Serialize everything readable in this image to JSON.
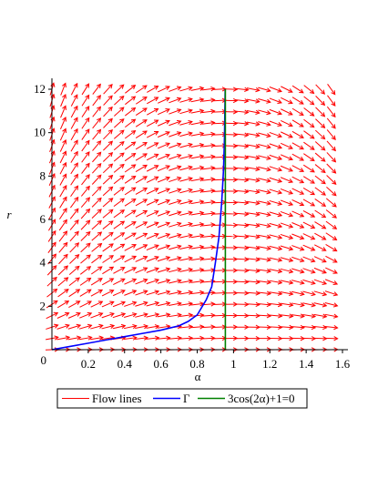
{
  "chart_data": {
    "type": "line",
    "title": "",
    "xlabel": "α",
    "ylabel": "r",
    "xlim": [
      0,
      1.6
    ],
    "ylim": [
      0,
      12
    ],
    "x_ticks": [
      0.2,
      0.4,
      0.6,
      0.8,
      1,
      1.2,
      1.4,
      1.6
    ],
    "y_ticks": [
      2,
      4,
      6,
      8,
      10,
      12
    ],
    "x_tick_labels": [
      "0.2",
      "0.4",
      "0.6",
      "0.8",
      "1",
      "1.2",
      "1.4",
      "1.6"
    ],
    "y_tick_labels": [
      "2",
      "4",
      "6",
      "8",
      "10",
      "12"
    ],
    "origin_label": "0",
    "grid": false,
    "legend_position": "bottom",
    "field": {
      "name": "Flow lines",
      "color": "#ff0000",
      "alpha_values": [
        0.0,
        0.0615,
        0.123,
        0.1846,
        0.246,
        0.3077,
        0.369,
        0.4308,
        0.492,
        0.5538,
        0.615,
        0.6769,
        0.738,
        0.8,
        0.861,
        0.923,
        0.984,
        1.046,
        1.108,
        1.169,
        1.231,
        1.292,
        1.354,
        1.415,
        1.477,
        1.538
      ],
      "r_values": [
        0,
        0.52,
        1.04,
        1.57,
        2.09,
        2.61,
        3.13,
        3.65,
        4.17,
        4.7,
        5.22,
        5.74,
        6.26,
        6.78,
        7.3,
        7.83,
        8.35,
        8.87,
        9.39,
        9.91,
        10.43,
        10.96,
        11.48,
        12.0
      ]
    },
    "series": [
      {
        "name": "Γ",
        "color": "#0000ff",
        "x": [
          0,
          0.1,
          0.2,
          0.3,
          0.4,
          0.5,
          0.6,
          0.7,
          0.75,
          0.8,
          0.85,
          0.88,
          0.9,
          0.92,
          0.935,
          0.945,
          0.95,
          0.952,
          0.954
        ],
        "y": [
          0,
          0.15,
          0.3,
          0.45,
          0.6,
          0.75,
          0.9,
          1.1,
          1.3,
          1.6,
          2.3,
          2.9,
          4.0,
          5.2,
          6.8,
          8.3,
          9.7,
          10.8,
          12.0
        ]
      },
      {
        "name": "3cos(2α)+1=0",
        "color": "#008000",
        "x": [
          0.955,
          0.955
        ],
        "y": [
          0,
          12
        ]
      }
    ]
  }
}
